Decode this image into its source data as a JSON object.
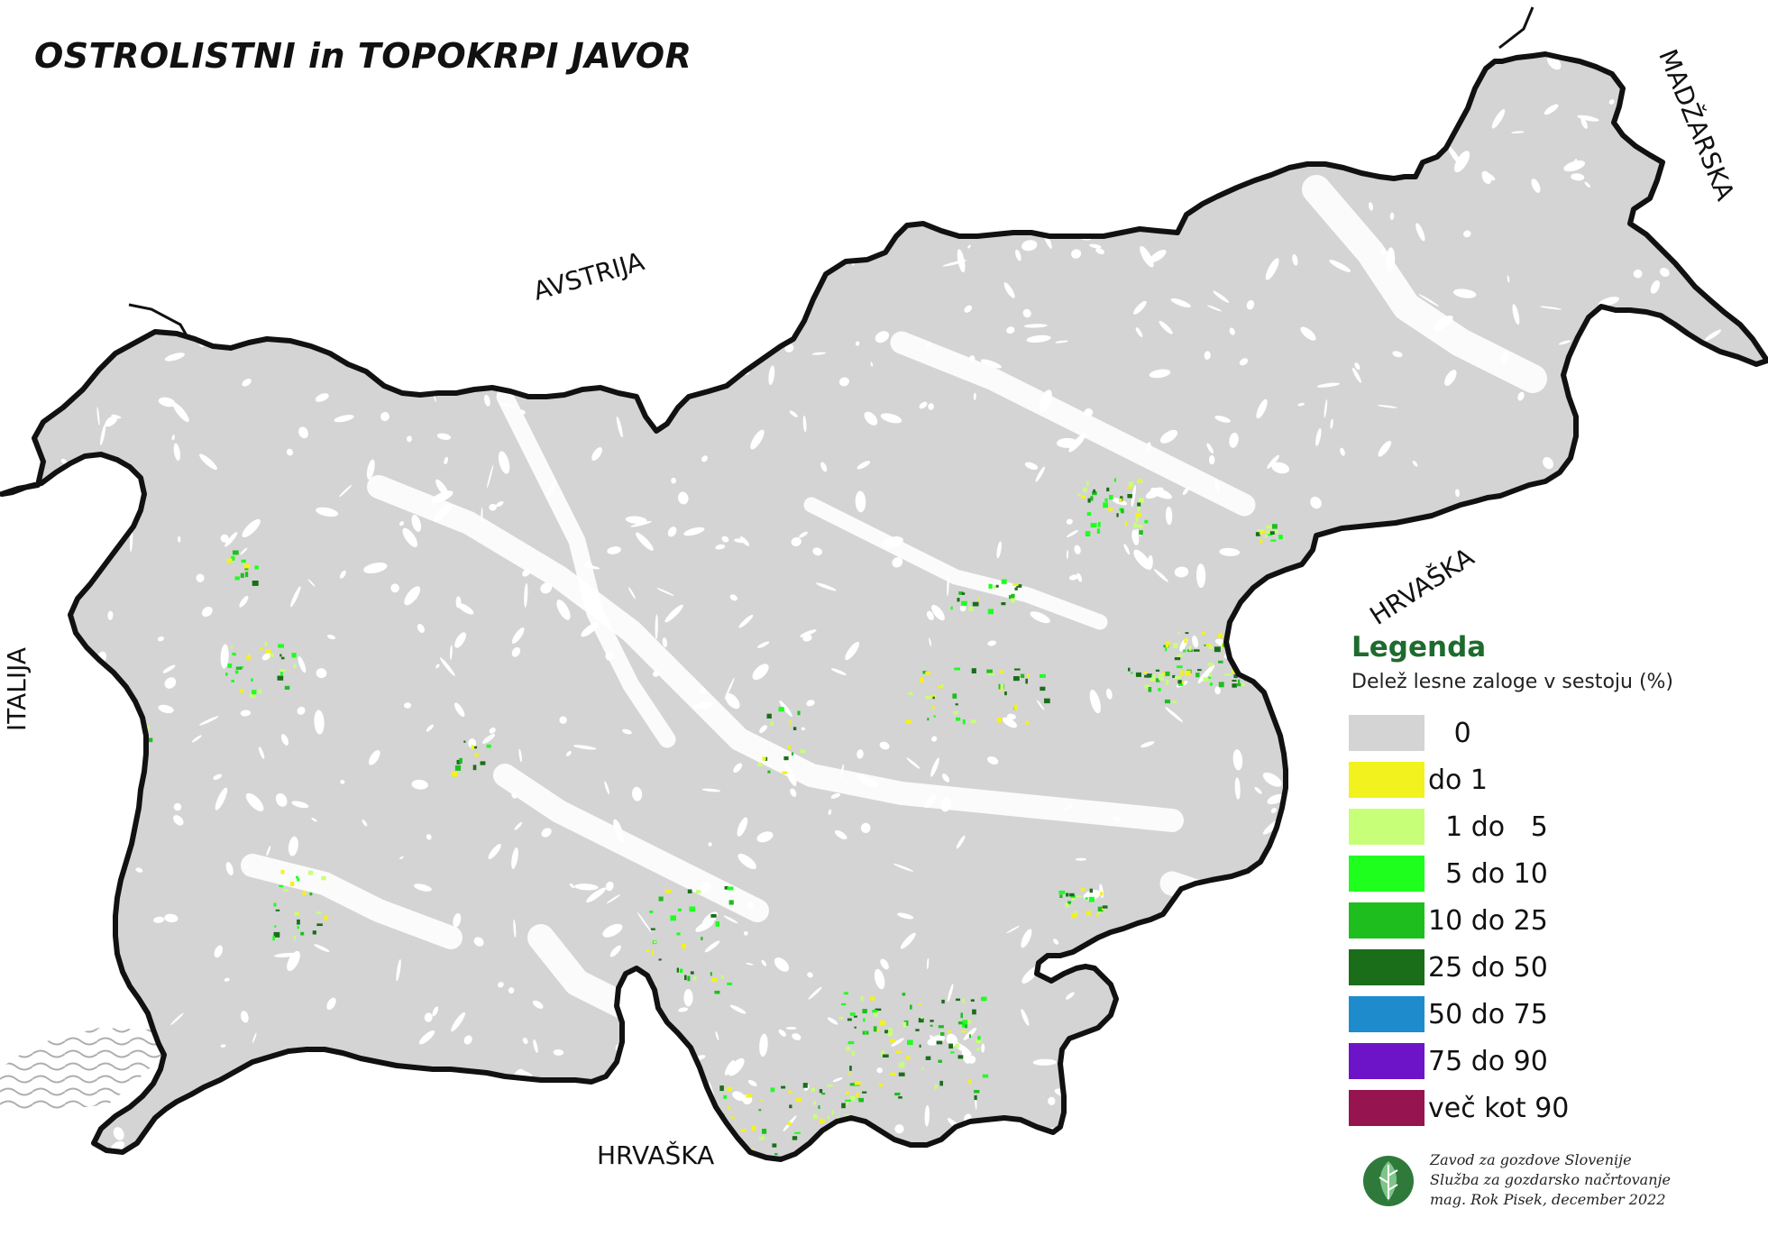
{
  "title": "OSTROLISTNI in TOPOKRPI JAVOR",
  "neighbors": {
    "austria": "AVSTRIJA",
    "hungary": "MADŽARSKA",
    "croatia_east": "HRVAŠKA",
    "croatia_south": "HRVAŠKA",
    "italy": "ITALIJA"
  },
  "legend": {
    "title": "Legenda",
    "subtitle": "Delež lesne zaloge v sestoju (%)",
    "items": [
      {
        "label": "   0",
        "color": "#d4d4d4"
      },
      {
        "label": "do 1",
        "color": "#f2f21e"
      },
      {
        "label": "  1 do   5",
        "color": "#c8ff78"
      },
      {
        "label": "  5 do 10",
        "color": "#1eff1e"
      },
      {
        "label": "10 do 25",
        "color": "#1ebe1e"
      },
      {
        "label": "25 do 50",
        "color": "#1a6e1a"
      },
      {
        "label": "50 do 75",
        "color": "#1e8ccc"
      },
      {
        "label": "75 do 90",
        "color": "#6e14c8"
      },
      {
        "label": "več kot 90",
        "color": "#961450"
      }
    ]
  },
  "credits": {
    "line1": "Zavod za gozdove Slovenije",
    "line2": "Služba za gozdarsko načrtovanje",
    "line3": "mag. Rok Pisek, december 2022"
  },
  "map": {
    "land_color": "#d4d4d4",
    "border_color": "#111111",
    "highlight_colors": [
      "#c8ff78",
      "#1eff1e",
      "#1ebe1e",
      "#f2f21e",
      "#1a6e1a"
    ]
  }
}
